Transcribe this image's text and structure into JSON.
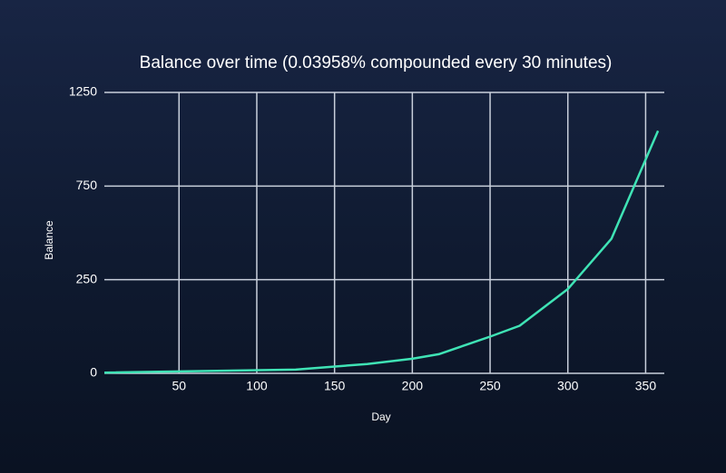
{
  "chart_data": {
    "type": "line",
    "title": "Balance over time (0.03958% compounded every 30 minutes)",
    "x_label": "Day",
    "y_label": "Balance",
    "x": [
      2,
      125,
      171,
      200,
      217,
      250,
      269,
      300,
      328,
      358
    ],
    "series": [
      {
        "name": "Balance",
        "color": "#3fe3b5",
        "values": [
          2,
          10,
          25,
          39,
          51,
          98,
          127,
          225,
          468,
          1045
        ]
      }
    ],
    "xlim": [
      2,
      362
    ],
    "xticks": [
      50,
      100,
      150,
      200,
      250,
      300,
      350
    ],
    "ylim": [
      0,
      1250
    ],
    "yticks": [
      0,
      250,
      750,
      1250
    ],
    "grid": true
  }
}
